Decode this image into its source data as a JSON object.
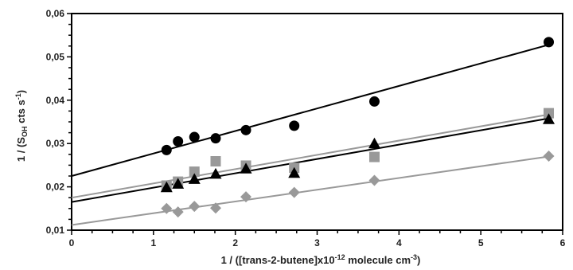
{
  "chart_data": {
    "type": "scatter",
    "xlabel_parts": {
      "lead": "1 / ([trans-2-butene]x10",
      "sup": "-12",
      "tail": " molecule cm",
      "sup2": "-3",
      "close": ")"
    },
    "ylabel_parts": {
      "lead": "1 / (S",
      "sub": "OH",
      "mid": " cts s",
      "sup": "-1",
      "close": ")"
    },
    "xlim": [
      0,
      6
    ],
    "ylim": [
      0.01,
      0.06
    ],
    "x_ticks": [
      "0",
      "1",
      "2",
      "3",
      "4",
      "5",
      "6"
    ],
    "y_ticks": [
      "0,01",
      "0,02",
      "0,03",
      "0,04",
      "0,05",
      "0,06"
    ],
    "grid": false,
    "legend": "none",
    "series": [
      {
        "marker": "circle",
        "color": "#000000",
        "line_color": "#000000",
        "x": [
          1.16,
          1.3,
          1.5,
          1.76,
          2.13,
          2.72,
          3.7,
          5.83
        ],
        "y": [
          0.0285,
          0.0305,
          0.0315,
          0.0312,
          0.0331,
          0.0341,
          0.0397,
          0.0534
        ],
        "fit": {
          "x": [
            0,
            5.83
          ],
          "y": [
            0.0225,
            0.0528
          ]
        }
      },
      {
        "marker": "square",
        "color": "#999999",
        "line_color": "#999999",
        "x": [
          1.16,
          1.3,
          1.5,
          1.76,
          2.13,
          2.72,
          3.7,
          5.83
        ],
        "y": [
          0.0203,
          0.0212,
          0.0235,
          0.0259,
          0.0249,
          0.0244,
          0.0269,
          0.037
        ],
        "fit": {
          "x": [
            0,
            5.83
          ],
          "y": [
            0.0175,
            0.0367
          ]
        }
      },
      {
        "marker": "triangle",
        "color": "#000000",
        "line_color": "#000000",
        "x": [
          1.16,
          1.3,
          1.5,
          1.76,
          2.13,
          2.72,
          3.7,
          5.83
        ],
        "y": [
          0.0198,
          0.0206,
          0.0217,
          0.0229,
          0.0241,
          0.0231,
          0.0299,
          0.0355
        ],
        "fit": {
          "x": [
            0,
            5.83
          ],
          "y": [
            0.0165,
            0.0358
          ]
        }
      },
      {
        "marker": "diamond",
        "color": "#999999",
        "line_color": "#999999",
        "x": [
          1.16,
          1.3,
          1.5,
          1.76,
          2.13,
          2.72,
          3.7,
          5.83
        ],
        "y": [
          0.015,
          0.0142,
          0.0155,
          0.0151,
          0.0177,
          0.0187,
          0.0215,
          0.0271
        ],
        "fit": {
          "x": [
            0,
            5.83
          ],
          "y": [
            0.0112,
            0.027
          ]
        }
      }
    ]
  }
}
